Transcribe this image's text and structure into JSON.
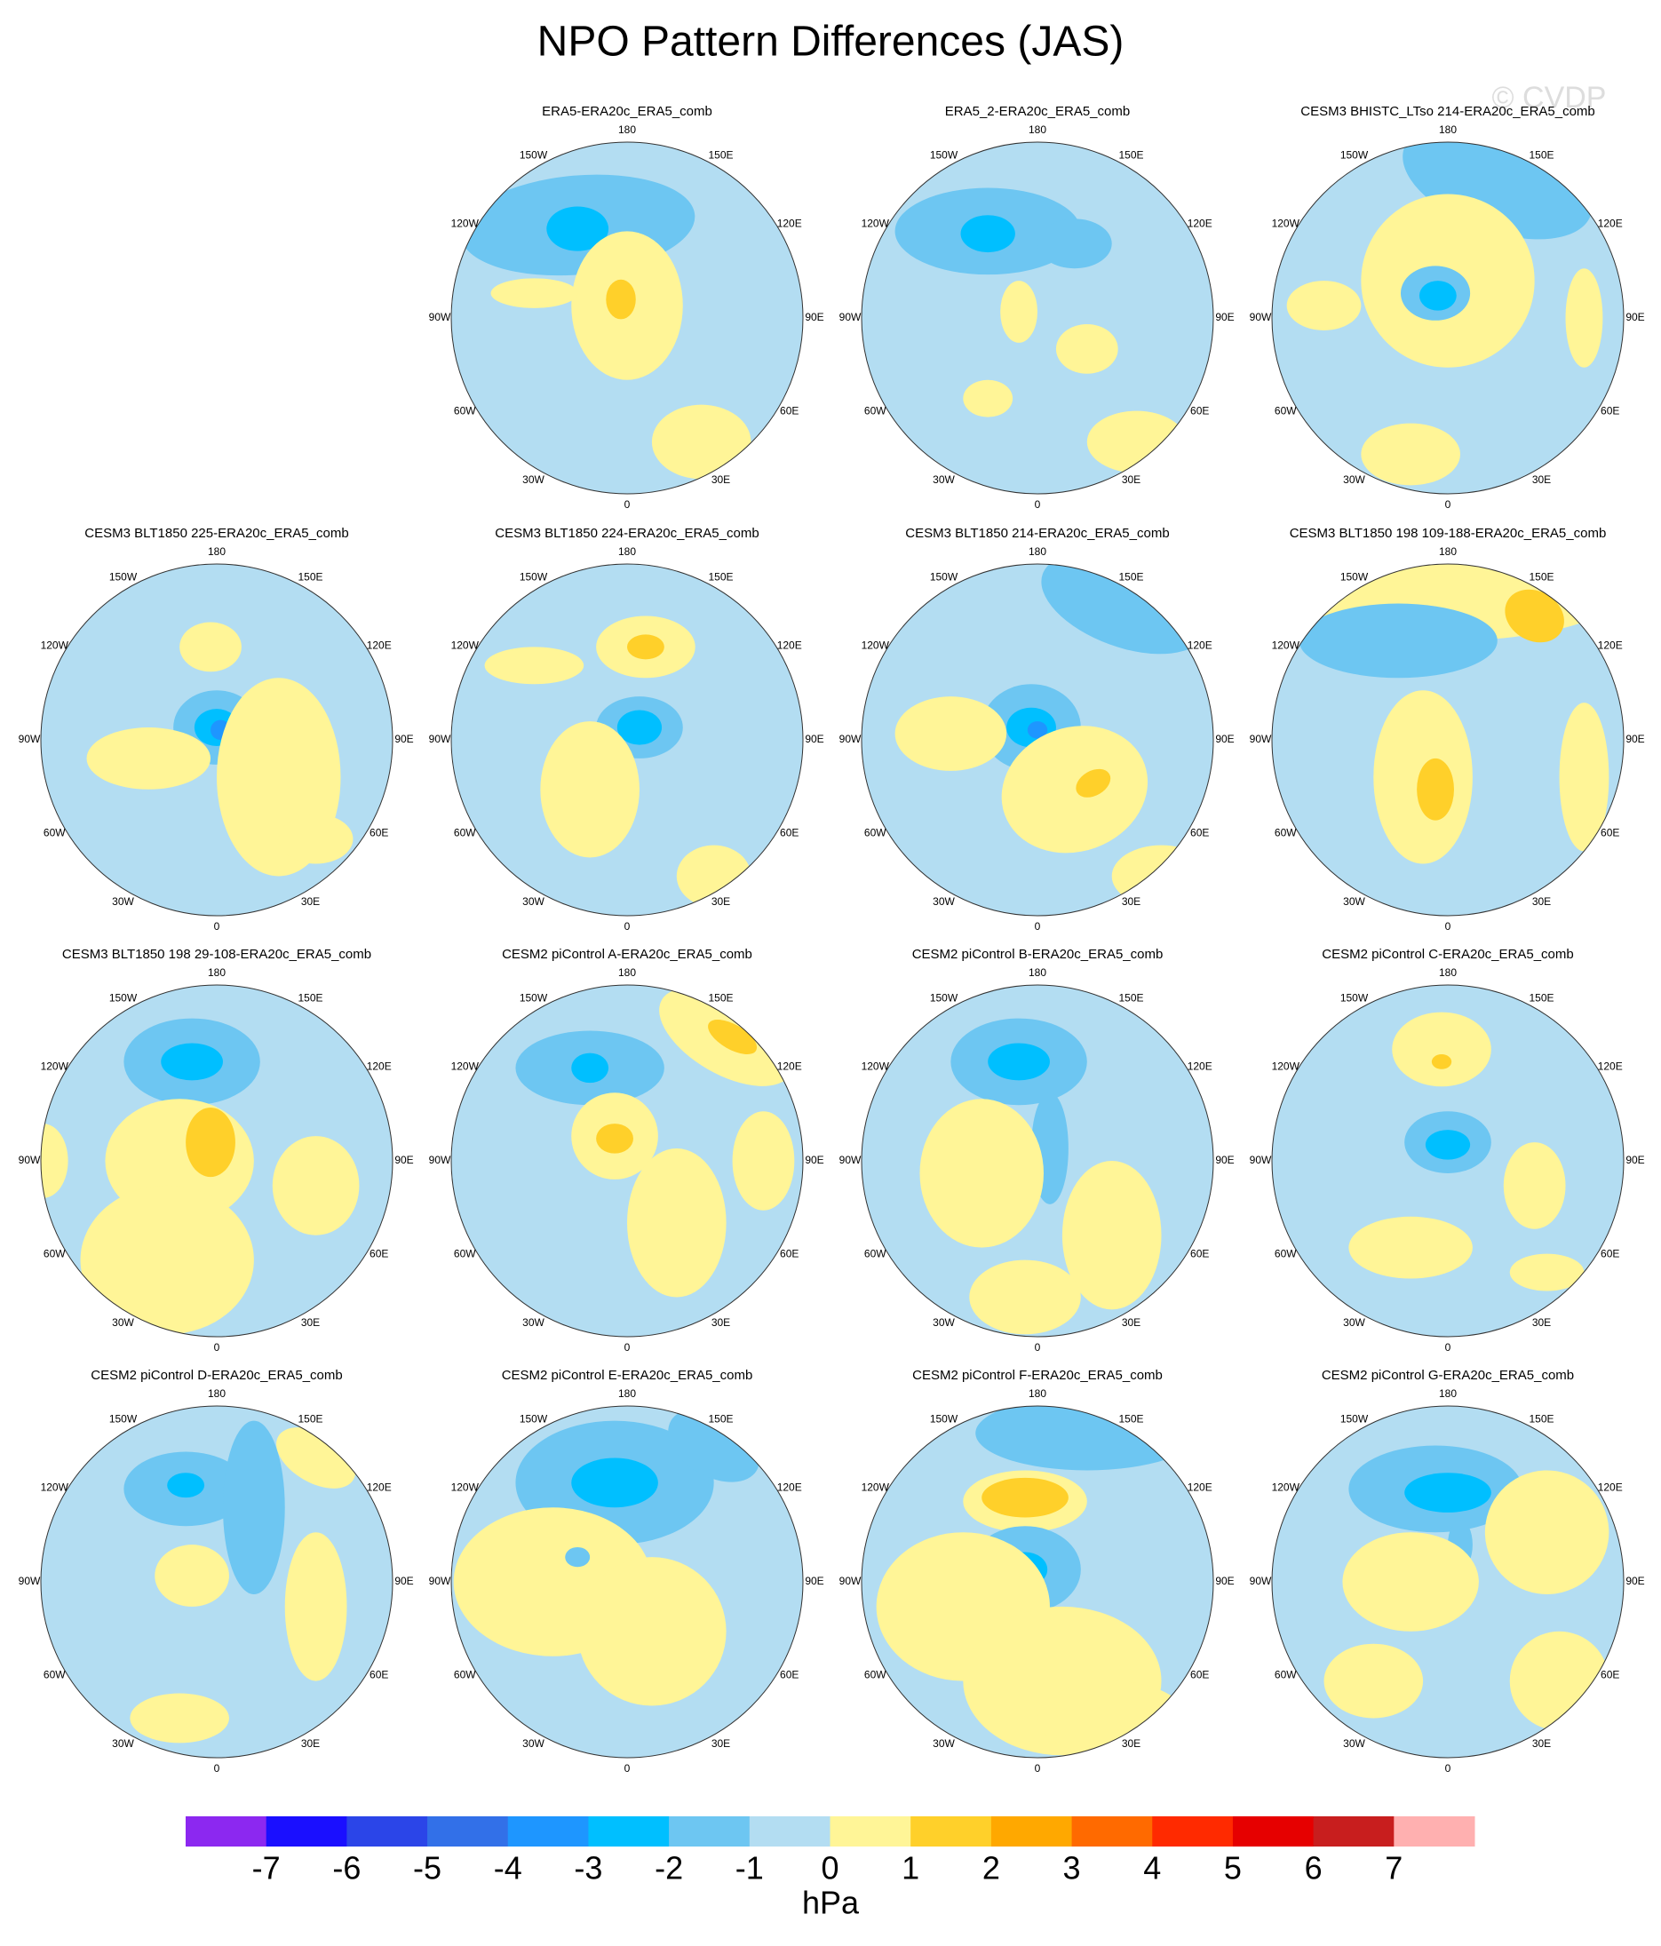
{
  "title": "NPO Pattern Differences (JAS)",
  "watermark": "© CVDP",
  "panels": [
    {
      "title": "ERA5-ERA20c_ERA5_comb"
    },
    {
      "title": "ERA5_2-ERA20c_ERA5_comb"
    },
    {
      "title": "CESM3 BHISTC_LTso 214-ERA20c_ERA5_comb"
    },
    {
      "title": "CESM3 BLT1850 225-ERA20c_ERA5_comb"
    },
    {
      "title": "CESM3 BLT1850 224-ERA20c_ERA5_comb"
    },
    {
      "title": "CESM3 BLT1850 214-ERA20c_ERA5_comb"
    },
    {
      "title": "CESM3 BLT1850 198 109-188-ERA20c_ERA5_comb"
    },
    {
      "title": "CESM3 BLT1850 198 29-108-ERA20c_ERA5_comb"
    },
    {
      "title": "CESM2 piControl A-ERA20c_ERA5_comb"
    },
    {
      "title": "CESM2 piControl B-ERA20c_ERA5_comb"
    },
    {
      "title": "CESM2 piControl C-ERA20c_ERA5_comb"
    },
    {
      "title": "CESM2 piControl D-ERA20c_ERA5_comb"
    },
    {
      "title": "CESM2 piControl E-ERA20c_ERA5_comb"
    },
    {
      "title": "CESM2 piControl F-ERA20c_ERA5_comb"
    },
    {
      "title": "CESM2 piControl G-ERA20c_ERA5_comb"
    }
  ],
  "longitude_labels": [
    "0",
    "30E",
    "60E",
    "90E",
    "120E",
    "150E",
    "180",
    "150W",
    "120W",
    "90W",
    "60W",
    "30W"
  ],
  "colorbar": {
    "colors": [
      "#8c28f0",
      "#1a0fff",
      "#2b45e8",
      "#3270e8",
      "#1e96ff",
      "#00bfff",
      "#6dc6f2",
      "#b3ddf2",
      "#fff597",
      "#ffd02a",
      "#ffa800",
      "#ff6a00",
      "#ff2a00",
      "#e60000",
      "#c81e1e",
      "#ffb0b0"
    ],
    "ticks": [
      -7,
      -6,
      -5,
      -4,
      -3,
      -2,
      -1,
      0,
      1,
      2,
      3,
      4,
      5,
      6,
      7
    ],
    "unit": "hPa"
  }
}
